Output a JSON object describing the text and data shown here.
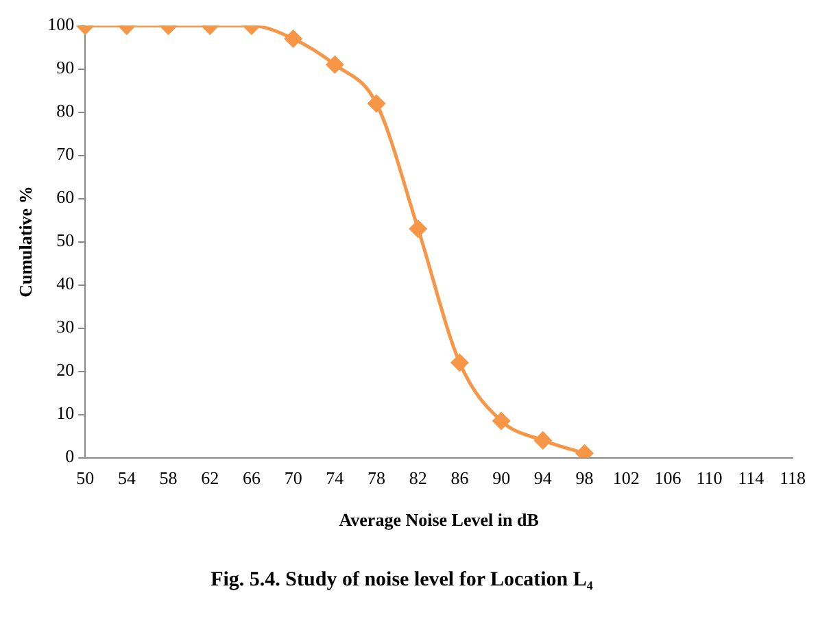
{
  "chart_data": {
    "type": "line",
    "title": "Fig. 5.4. Study of noise level for Location L₄",
    "xlabel": "Average Noise Level in dB",
    "ylabel": "Cumulative %",
    "categories": [
      "50",
      "54",
      "58",
      "62",
      "66",
      "70",
      "74",
      "78",
      "82",
      "86",
      "90",
      "94",
      "98",
      "102",
      "106",
      "110",
      "114",
      "118"
    ],
    "series": [
      {
        "color": "#f79646",
        "values": [
          100,
          100,
          100,
          100,
          100,
          97,
          91,
          82,
          53,
          22,
          8.5,
          4,
          1,
          null,
          null,
          null,
          null,
          null
        ]
      }
    ],
    "ylim": [
      0,
      100
    ],
    "yticks": [
      0,
      10,
      20,
      30,
      40,
      50,
      60,
      70,
      80,
      90,
      100
    ],
    "grid": false,
    "legend": false,
    "marker": "diamond",
    "line_style": "solid"
  }
}
